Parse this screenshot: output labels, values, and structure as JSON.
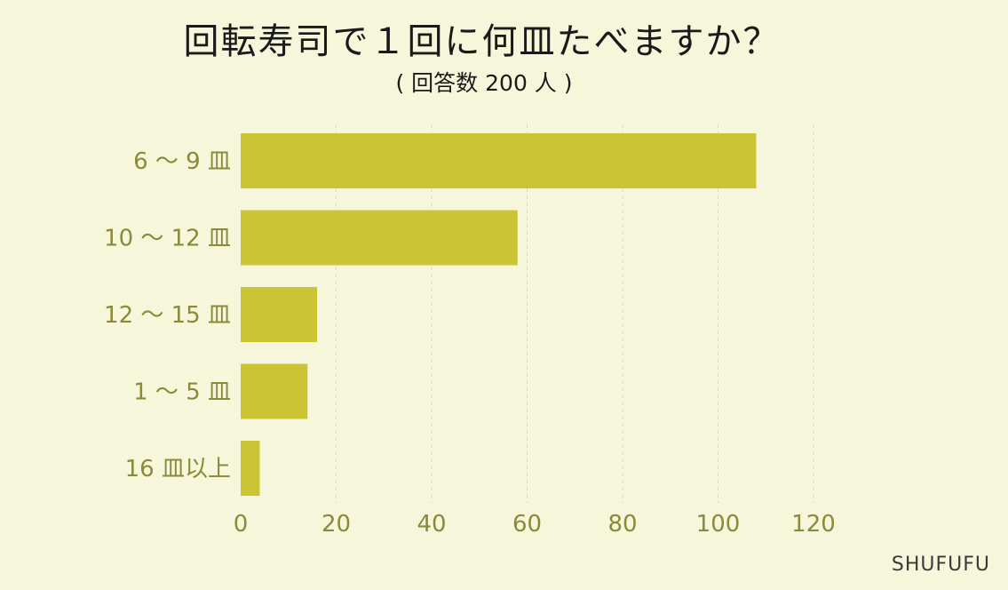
{
  "chart_data": {
    "type": "bar",
    "orientation": "horizontal",
    "title": "回転寿司で１回に何皿たべますか？",
    "subtitle": "( 回答数 200 人 )",
    "categories": [
      "6 〜 9 皿",
      "10 〜 12 皿",
      "12 〜 15 皿",
      "1 〜 5 皿",
      "16 皿以上"
    ],
    "values": [
      108,
      58,
      16,
      14,
      4
    ],
    "xlim": [
      0,
      120
    ],
    "xticks": [
      0,
      20,
      40,
      60,
      80,
      100,
      120
    ],
    "xlabel": "",
    "ylabel": "",
    "grid": true,
    "legend": "none"
  },
  "colors": {
    "background": "#f6f6da",
    "bar": "#cbc534",
    "tick_label": "#8a8a3a",
    "grid": "#dcdcc4",
    "title": "#1a1a1a"
  },
  "brand": "SHUFUFU"
}
